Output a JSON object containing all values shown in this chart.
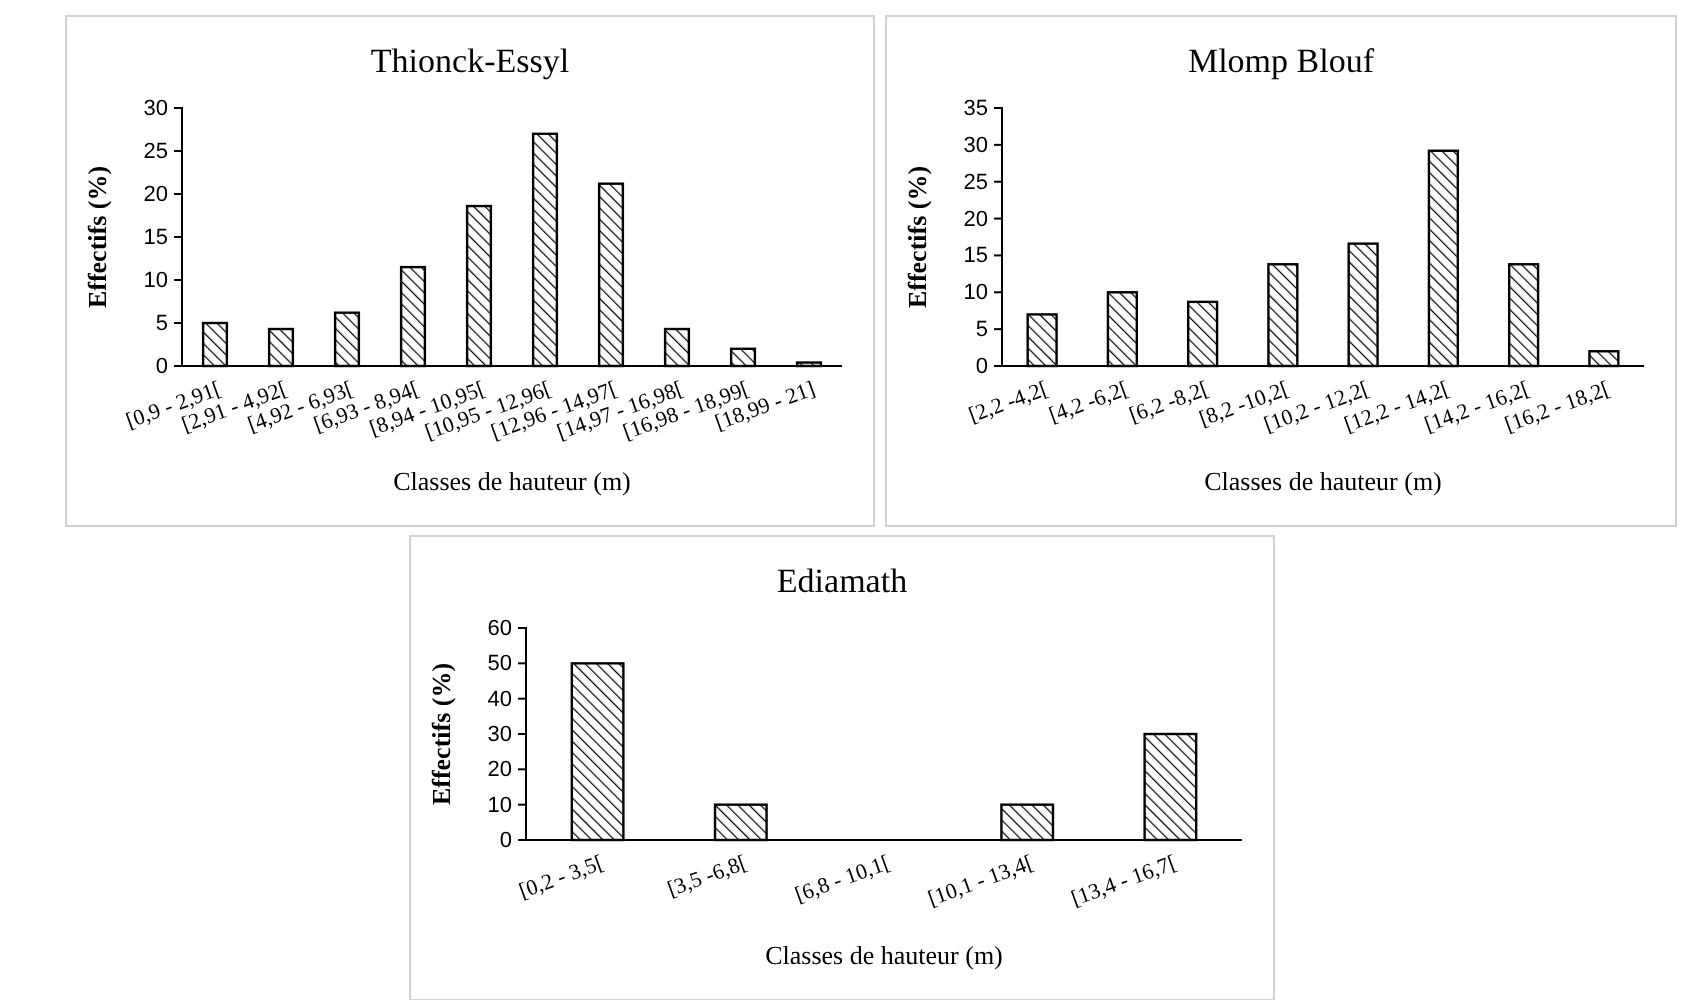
{
  "chart_data": [
    {
      "type": "bar",
      "title": "Thionck-Essyl",
      "xlabel": "Classes de hauteur (m)",
      "ylabel": "Effectifs (%)",
      "categories": [
        "[0,9 - 2,91[",
        "[2,91 - 4,92[",
        "[4,92 - 6,93[",
        "[6,93 - 8,94[",
        "[8,94 - 10,95[",
        "[10,95 - 12,96[",
        "[12,96 - 14,97[",
        "[14,97 - 16,98[",
        "[16,98 - 18,99[",
        "[18,99 - 21]"
      ],
      "values": [
        5,
        4.3,
        6.2,
        11.5,
        18.6,
        27,
        21.2,
        4.3,
        2,
        0.4
      ],
      "color": "#000000",
      "ylim": [
        0,
        30
      ],
      "yticks": [
        0,
        5,
        10,
        15,
        20,
        25,
        30
      ],
      "grid": false
    },
    {
      "type": "bar",
      "title": "Mlomp Blouf",
      "xlabel": "Classes de hauteur (m)",
      "ylabel": "Effectifs (%)",
      "categories": [
        "[2,2 -4,2[",
        "[4,2 -6,2[",
        "[6,2 -8,2[",
        "[8,2 -10,2[",
        "[10,2 - 12,2[",
        "[12,2 - 14,2[",
        "[14,2 - 16,2[",
        "[16,2 - 18,2["
      ],
      "values": [
        7,
        10,
        8.7,
        13.8,
        16.6,
        29.2,
        13.8,
        2
      ],
      "color": "#000000",
      "ylim": [
        0,
        35
      ],
      "yticks": [
        0,
        5,
        10,
        15,
        20,
        25,
        30,
        35
      ],
      "grid": false
    },
    {
      "type": "bar",
      "title": "Ediamath",
      "xlabel": "Classes de hauteur (m)",
      "ylabel": "Effectifs (%)",
      "categories": [
        "[0,2 - 3,5[",
        "[3,5 -6,8[",
        "[6,8 - 10,1[",
        "[10,1 - 13,4[",
        "[13,4 - 16,7["
      ],
      "values": [
        50,
        10,
        0,
        10,
        30
      ],
      "color": "#000000",
      "ylim": [
        0,
        60
      ],
      "yticks": [
        0,
        10,
        20,
        30,
        40,
        50,
        60
      ],
      "grid": false
    }
  ]
}
